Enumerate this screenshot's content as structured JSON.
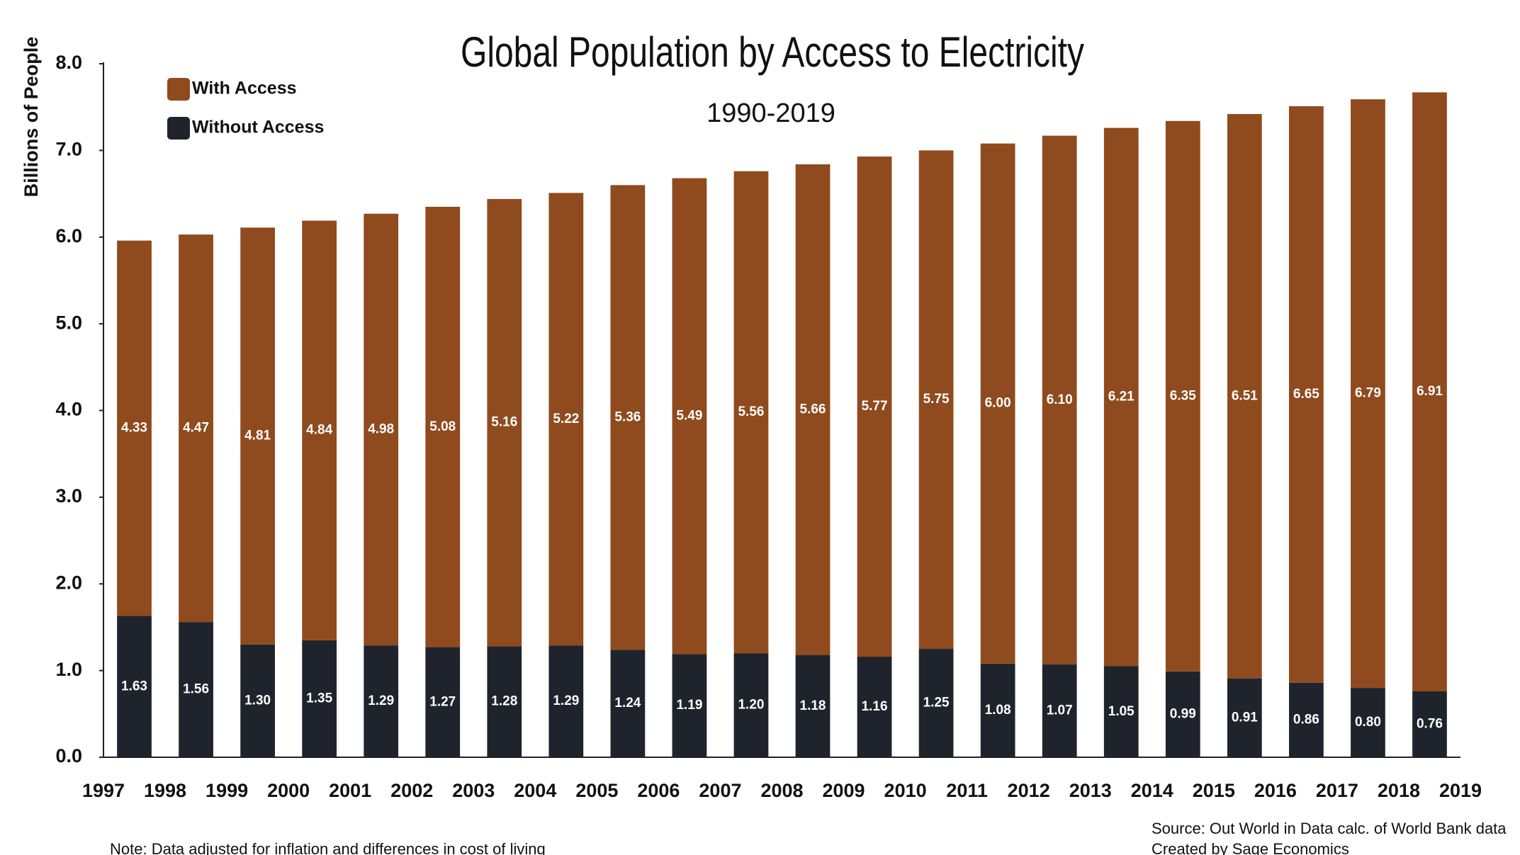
{
  "chart_data": {
    "type": "stacked_bar",
    "title": "Global Population by Access to Electricity",
    "subtitle": "1990-2019",
    "y_label": "Billions of People",
    "note": "Note: Data adjusted for inflation and differences in cost of living",
    "source": [
      "Source: Out World in Data calc. of World Bank data",
      "Created by Sage Economics"
    ],
    "xlim": [
      1997,
      2019
    ],
    "xticks": [
      1997,
      1998,
      1999,
      2000,
      2001,
      2002,
      2003,
      2004,
      2005,
      2006,
      2007,
      2008,
      2009,
      2010,
      2011,
      2012,
      2013,
      2014,
      2015,
      2016,
      2017,
      2018,
      2019
    ],
    "ylim": [
      0,
      8
    ],
    "yticks": [
      {
        "value": 0,
        "label": "0.0"
      },
      {
        "value": 1,
        "label": "1.0"
      },
      {
        "value": 2,
        "label": "2.0"
      },
      {
        "value": 3,
        "label": "3.0"
      },
      {
        "value": 4,
        "label": "4.0"
      },
      {
        "value": 5,
        "label": "5.0"
      },
      {
        "value": 6,
        "label": "6.0"
      },
      {
        "value": 7,
        "label": "7.0"
      },
      {
        "value": 8,
        "label": "8.0"
      }
    ],
    "grid": false,
    "legend": "top-left",
    "series": [
      {
        "name": "Without Access",
        "color": "#1f242c",
        "values": [
          1.63,
          1.56,
          1.3,
          1.35,
          1.29,
          1.27,
          1.28,
          1.29,
          1.24,
          1.19,
          1.2,
          1.18,
          1.16,
          1.25,
          1.08,
          1.07,
          1.05,
          0.99,
          0.91,
          0.86,
          0.8,
          0.76
        ],
        "value_labels": [
          "1.63",
          "1.56",
          "1.30",
          "1.35",
          "1.29",
          "1.27",
          "1.28",
          "1.29",
          "1.24",
          "1.19",
          "1.20",
          "1.18",
          "1.16",
          "1.25",
          "1.08",
          "1.07",
          "1.05",
          "0.99",
          "0.91",
          "0.86",
          "0.80",
          "0.76"
        ]
      },
      {
        "name": "With Access",
        "color": "#8f4a1e",
        "values": [
          4.33,
          4.47,
          4.81,
          4.84,
          4.98,
          5.08,
          5.16,
          5.22,
          5.36,
          5.49,
          5.56,
          5.66,
          5.77,
          5.75,
          6.0,
          6.1,
          6.21,
          6.35,
          6.51,
          6.65,
          6.79,
          6.91
        ],
        "value_labels": [
          "4.33",
          "4.47",
          "4.81",
          "4.84",
          "4.98",
          "5.08",
          "5.16",
          "5.22",
          "5.36",
          "5.49",
          "5.56",
          "5.66",
          "5.77",
          "5.75",
          "6.00",
          "6.10",
          "6.21",
          "6.35",
          "6.51",
          "6.65",
          "6.79",
          "6.91"
        ]
      }
    ]
  }
}
